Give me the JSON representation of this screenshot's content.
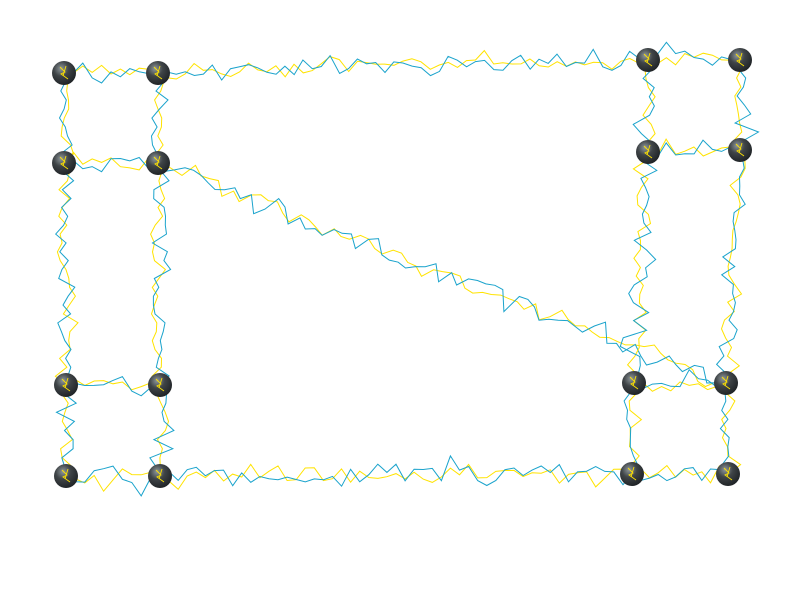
{
  "game": {
    "type": "graph-untangle",
    "edge_style": "jagged-lightning",
    "colors": {
      "background": "#ffffff",
      "strand_primary": "#1aa3cc",
      "strand_secondary": "#ffe300",
      "node_fill": "#3f4447",
      "node_shade": "#1f2326",
      "node_highlight": "#8f989c",
      "node_glyph": "#ffe300"
    },
    "node_count": 16,
    "edges": [
      [
        0,
        1
      ],
      [
        0,
        4
      ],
      [
        1,
        2
      ],
      [
        1,
        5
      ],
      [
        2,
        3
      ],
      [
        2,
        6
      ],
      [
        3,
        7
      ],
      [
        4,
        5
      ],
      [
        4,
        8
      ],
      [
        5,
        11
      ],
      [
        5,
        9
      ],
      [
        6,
        7
      ],
      [
        6,
        10
      ],
      [
        7,
        11
      ],
      [
        8,
        9
      ],
      [
        8,
        12
      ],
      [
        9,
        13
      ],
      [
        10,
        11
      ],
      [
        10,
        14
      ],
      [
        11,
        15
      ],
      [
        12,
        13
      ],
      [
        13,
        14
      ],
      [
        14,
        15
      ]
    ]
  }
}
